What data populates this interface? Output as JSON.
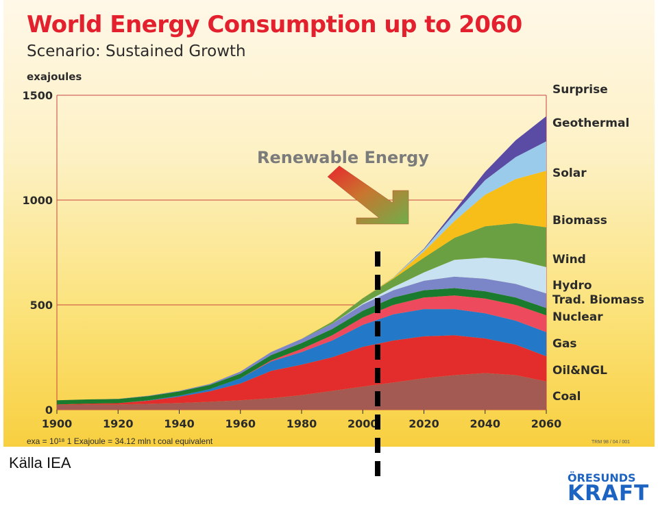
{
  "title": "World Energy Consumption up to 2060",
  "subtitle": "Scenario: Sustained Growth",
  "footnote": "exa = 10¹⁸ 1 Exajoule = 34.12 mln t coal equivalent",
  "code": "TRM 98 / 04 / 001",
  "source": "Källa IEA",
  "logo": {
    "line1": "ÖRESUNDS",
    "line2": "KRAFT"
  },
  "annotation": "Renewable Energy",
  "colors": {
    "title": "#e3202e",
    "grid": "#c8433f",
    "logo": "#1d63c2"
  },
  "chart_data": {
    "type": "area",
    "stacked": true,
    "title": "World Energy Consumption up to 2060",
    "subtitle": "Scenario: Sustained Growth",
    "ylabel": "exajoules",
    "ylim": [
      0,
      1500
    ],
    "yticks": [
      0,
      500,
      1000,
      1500
    ],
    "xlim": [
      1900,
      2060
    ],
    "xticks": [
      1900,
      1920,
      1940,
      1960,
      1980,
      2000,
      2020,
      2040,
      2060
    ],
    "grid": true,
    "legend": "right, labels at series ends",
    "x": [
      1900,
      1910,
      1920,
      1930,
      1940,
      1950,
      1960,
      1970,
      1980,
      1990,
      2000,
      2010,
      2020,
      2030,
      2040,
      2050,
      2060
    ],
    "series": [
      {
        "name": "Coal",
        "color": "#a35a52",
        "values": [
          23,
          25,
          25,
          28,
          32,
          38,
          45,
          55,
          70,
          90,
          110,
          130,
          150,
          165,
          175,
          165,
          135
        ]
      },
      {
        "name": "Oil&NGL",
        "color": "#e32c2c",
        "values": [
          2,
          4,
          6,
          15,
          30,
          50,
          80,
          130,
          145,
          160,
          190,
          200,
          200,
          190,
          165,
          145,
          120
        ]
      },
      {
        "name": "Gas",
        "color": "#2379c7",
        "values": [
          0,
          0,
          0,
          2,
          5,
          10,
          25,
          45,
          60,
          80,
          105,
          125,
          130,
          125,
          120,
          115,
          115
        ]
      },
      {
        "name": "Nuclear",
        "color": "#ee4a5e",
        "values": [
          0,
          0,
          0,
          0,
          0,
          0,
          0,
          5,
          15,
          25,
          35,
          45,
          55,
          65,
          70,
          75,
          80
        ]
      },
      {
        "name": "Trad. Biomass",
        "color": "#1a7a2e",
        "values": [
          20,
          20,
          20,
          20,
          20,
          20,
          22,
          25,
          28,
          30,
          32,
          35,
          35,
          35,
          35,
          35,
          35
        ]
      },
      {
        "name": "Hydro",
        "color": "#7b86c8",
        "values": [
          0,
          0,
          1,
          2,
          3,
          5,
          10,
          15,
          20,
          25,
          30,
          35,
          45,
          55,
          60,
          65,
          70
        ]
      },
      {
        "name": "Wind",
        "color": "#c8e2f2",
        "values": [
          0,
          0,
          0,
          0,
          0,
          0,
          0,
          0,
          0,
          0,
          5,
          15,
          40,
          80,
          100,
          115,
          125
        ]
      },
      {
        "name": "Biomass",
        "color": "#6aa041",
        "values": [
          0,
          0,
          0,
          0,
          0,
          0,
          0,
          0,
          0,
          10,
          25,
          40,
          70,
          105,
          150,
          175,
          190
        ]
      },
      {
        "name": "Solar",
        "color": "#f7be1a",
        "values": [
          0,
          0,
          0,
          0,
          0,
          0,
          0,
          0,
          0,
          0,
          0,
          5,
          30,
          80,
          150,
          210,
          270
        ]
      },
      {
        "name": "Geothermal",
        "color": "#9bcbea",
        "values": [
          0,
          0,
          0,
          0,
          0,
          0,
          0,
          0,
          0,
          0,
          0,
          2,
          10,
          35,
          70,
          105,
          140
        ]
      },
      {
        "name": "Surprise",
        "color": "#5a4ba5",
        "values": [
          0,
          0,
          0,
          0,
          0,
          0,
          0,
          0,
          0,
          0,
          0,
          0,
          3,
          15,
          40,
          80,
          120
        ]
      }
    ]
  }
}
